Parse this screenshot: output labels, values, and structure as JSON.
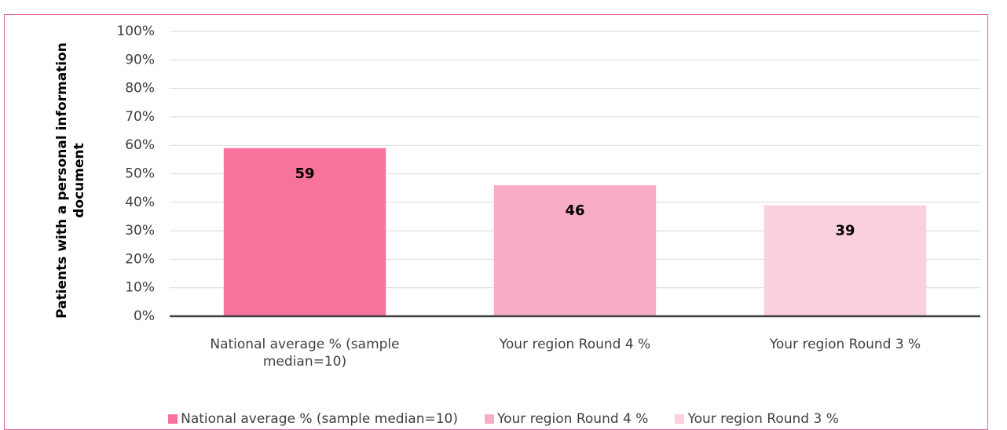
{
  "chart_data": {
    "type": "bar",
    "y_label": "Patients with a personal information document",
    "categories": [
      "National average % (sample median=10)",
      "Your region Round 4 %",
      "Your region Round 3 %"
    ],
    "values": [
      59,
      46,
      39
    ],
    "colors": [
      "#f7739b",
      "#f9adc5",
      "#fbd0de"
    ],
    "ylim": [
      0,
      100
    ],
    "yticks": [
      {
        "value": 0,
        "label": "0%"
      },
      {
        "value": 10,
        "label": "10%"
      },
      {
        "value": 20,
        "label": "20%"
      },
      {
        "value": 30,
        "label": "30%"
      },
      {
        "value": 40,
        "label": "40%"
      },
      {
        "value": 50,
        "label": "50%"
      },
      {
        "value": 60,
        "label": "60%"
      },
      {
        "value": 70,
        "label": "70%"
      },
      {
        "value": 80,
        "label": "80%"
      },
      {
        "value": 90,
        "label": "90%"
      },
      {
        "value": 100,
        "label": "100%"
      }
    ],
    "grid": true,
    "legend": "bottom"
  }
}
